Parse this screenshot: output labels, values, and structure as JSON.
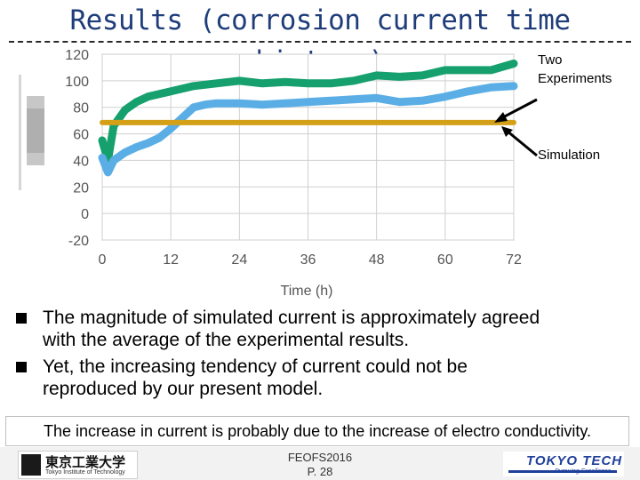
{
  "slide": {
    "title": "Results (corrosion current time history)"
  },
  "chart_data": {
    "type": "line",
    "xlabel": "Time (h)",
    "ylabel": "",
    "x_ticks": [
      0,
      12,
      24,
      36,
      48,
      60,
      72
    ],
    "y_ticks": [
      -20,
      0,
      20,
      40,
      60,
      80,
      100,
      120
    ],
    "xlim": [
      0,
      72
    ],
    "ylim": [
      -20,
      120
    ],
    "grid": true,
    "series": [
      {
        "name": "",
        "color": "#16a06e",
        "x": [
          0,
          1,
          2,
          4,
          6,
          8,
          10,
          12,
          16,
          20,
          24,
          28,
          32,
          36,
          40,
          44,
          48,
          52,
          56,
          60,
          64,
          68,
          72
        ],
        "y": [
          55,
          40,
          66,
          78,
          84,
          88,
          90,
          92,
          96,
          98,
          100,
          98,
          99,
          98,
          98,
          100,
          104,
          103,
          104,
          108,
          108,
          108,
          113
        ]
      },
      {
        "name": "",
        "color": "#5aaee5",
        "x": [
          0,
          1,
          2,
          4,
          6,
          8,
          10,
          12,
          14,
          16,
          18,
          20,
          24,
          28,
          32,
          36,
          40,
          44,
          48,
          52,
          56,
          60,
          64,
          68,
          72
        ],
        "y": [
          42,
          31,
          40,
          46,
          50,
          53,
          57,
          64,
          72,
          80,
          82,
          83,
          83,
          82,
          83,
          84,
          85,
          86,
          87,
          84,
          85,
          88,
          92,
          95,
          96
        ]
      },
      {
        "name": "",
        "color": "#d4a017",
        "x": [
          0,
          72
        ],
        "y": [
          68.5,
          68.5
        ]
      }
    ]
  },
  "annotations": {
    "experiments_line1": "Two",
    "experiments_line2": "Experiments",
    "simulation": "Simulation"
  },
  "bullets": [
    {
      "line1": "The magnitude of simulated current is approximately agreed",
      "line2": "with the average of the experimental results."
    },
    {
      "line1": "Yet, the increasing tendency of current could not be",
      "line2": "reproduced by our present model."
    }
  ],
  "note": "The increase in current is probably due to the increase of electro conductivity.",
  "footer": {
    "conference": "FEOFS2016",
    "page": "P. 28",
    "left_logo_jp": "東京工業大学",
    "left_logo_en": "Tokyo Institute of Technology",
    "right_logo_word": "TOKYO TECH",
    "right_logo_sub": "Pursuing Excellence"
  },
  "colors": {
    "title": "#1f3d7a",
    "experiment_1": "#16a06e",
    "experiment_2": "#5aaee5",
    "simulation": "#d4a017"
  }
}
